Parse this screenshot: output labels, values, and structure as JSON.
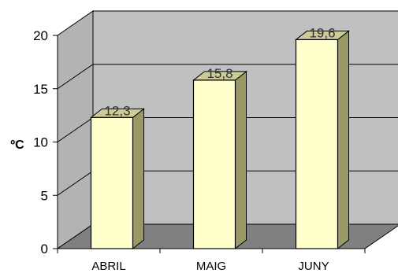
{
  "chart_data": {
    "type": "bar",
    "categories": [
      "ABRIL",
      "MAIG",
      "JUNY"
    ],
    "values": [
      12.3,
      15.8,
      19.6
    ],
    "data_labels": [
      "12,3",
      "15,8",
      "19,6"
    ],
    "ylabel": "ºC",
    "xlabel": "",
    "title": "",
    "ylim": [
      0,
      20
    ],
    "yticks": [
      "0",
      "5",
      "10",
      "15",
      "20"
    ],
    "grid": true,
    "legend": "none",
    "three_d": true,
    "colors": {
      "bar_front": "#ffffcc",
      "bar_side": "#999966",
      "bar_top": "#cccc99",
      "back_wall": "#c0c0c0",
      "side_wall": "#b3b3b3",
      "floor": "#808080",
      "gridline": "#000000"
    }
  }
}
